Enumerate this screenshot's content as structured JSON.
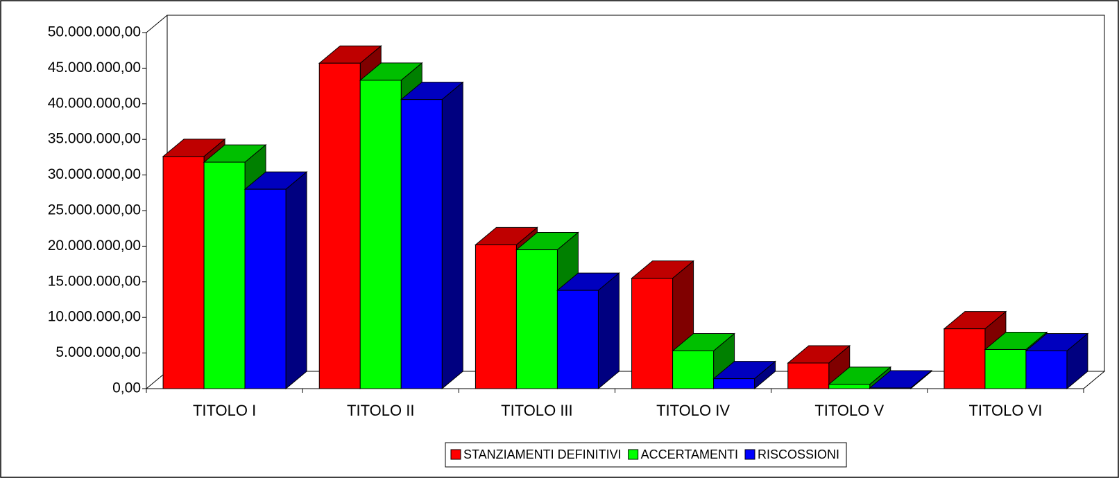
{
  "chart_data": {
    "type": "bar3d",
    "categories": [
      "TITOLO I",
      "TITOLO II",
      "TITOLO III",
      "TITOLO IV",
      "TITOLO V",
      "TITOLO VI"
    ],
    "series": [
      {
        "name": "STANZIAMENTI DEFINITIVI",
        "color": "#ff0000",
        "values": [
          32600000,
          45700000,
          20200000,
          15500000,
          3600000,
          8400000
        ]
      },
      {
        "name": "ACCERTAMENTI",
        "color": "#00ff00",
        "values": [
          31800000,
          43300000,
          19500000,
          5300000,
          600000,
          5500000
        ]
      },
      {
        "name": "RISCOSSIONI",
        "color": "#0000ff",
        "values": [
          28000000,
          40600000,
          13800000,
          1400000,
          100000,
          5300000
        ]
      }
    ],
    "ylim": [
      0,
      50000000
    ],
    "yticks": [
      {
        "value": 0,
        "label": "0,00"
      },
      {
        "value": 5000000,
        "label": "5.000.000,00"
      },
      {
        "value": 10000000,
        "label": "10.000.000,00"
      },
      {
        "value": 15000000,
        "label": "15.000.000,00"
      },
      {
        "value": 20000000,
        "label": "20.000.000,00"
      },
      {
        "value": 25000000,
        "label": "25.000.000,00"
      },
      {
        "value": 30000000,
        "label": "30.000.000,00"
      },
      {
        "value": 35000000,
        "label": "35.000.000,00"
      },
      {
        "value": 40000000,
        "label": "40.000.000,00"
      },
      {
        "value": 45000000,
        "label": "45.000.000,00"
      },
      {
        "value": 50000000,
        "label": "50.000.000,00"
      }
    ],
    "legend": "bottom"
  }
}
